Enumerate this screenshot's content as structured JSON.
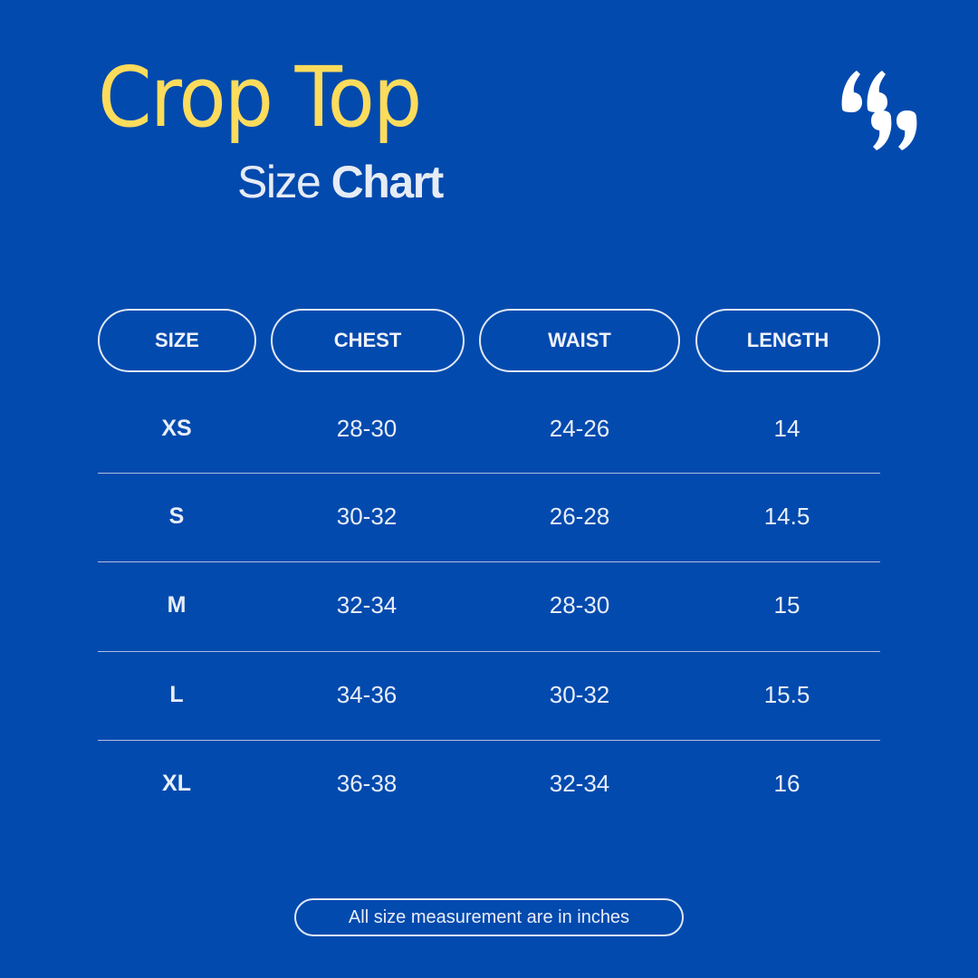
{
  "title": "Crop Top",
  "subtitle": {
    "light": "Size",
    "bold": "Chart"
  },
  "colors": {
    "background": "#034aae",
    "title": "#fddc5c",
    "text": "#e8eef8"
  },
  "icon": "quote-marks-icon",
  "table": {
    "headers": [
      "SIZE",
      "CHEST",
      "WAIST",
      "LENGTH"
    ],
    "rows": [
      [
        "XS",
        "28-30",
        "24-26",
        "14"
      ],
      [
        "S",
        "30-32",
        "26-28",
        "14.5"
      ],
      [
        "M",
        "32-34",
        "28-30",
        "15"
      ],
      [
        "L",
        "34-36",
        "30-32",
        "15.5"
      ],
      [
        "XL",
        "36-38",
        "32-34",
        "16"
      ]
    ]
  },
  "footer": "All size measurement are in inches"
}
